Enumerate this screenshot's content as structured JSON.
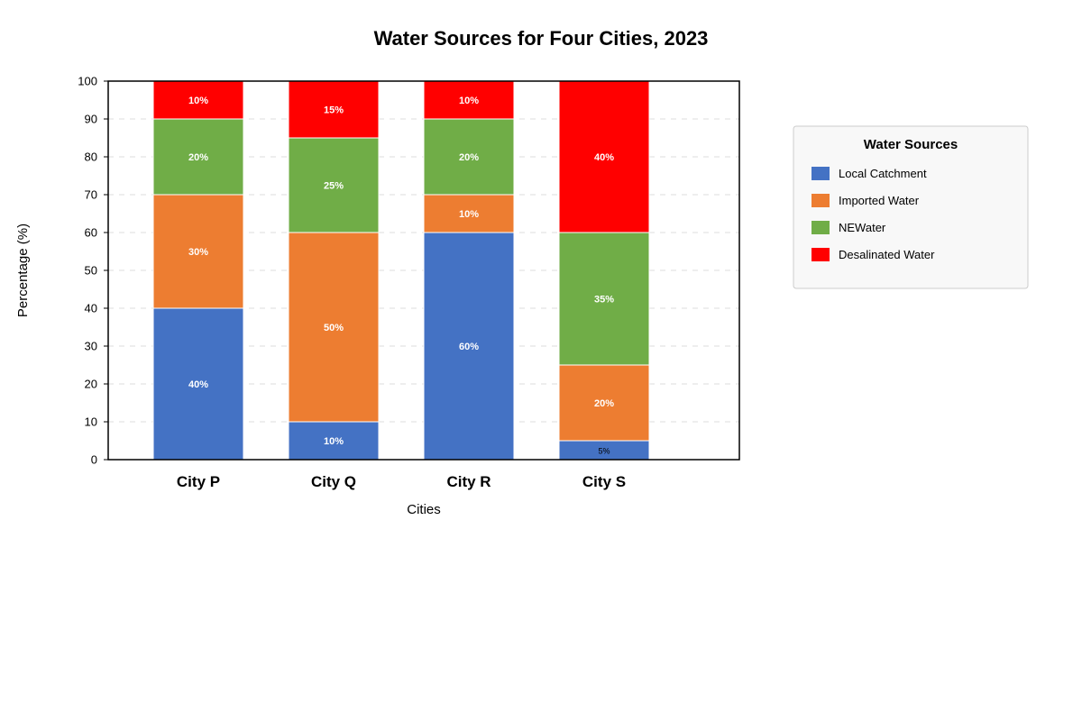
{
  "chart_data": {
    "type": "bar",
    "stacked": true,
    "title": "Water Sources for Four Cities, 2023",
    "xlabel": "Cities",
    "ylabel": "Percentage (%)",
    "ylim": [
      0,
      100
    ],
    "yticks": [
      0,
      10,
      20,
      30,
      40,
      50,
      60,
      70,
      80,
      90,
      100
    ],
    "grid": true,
    "legend_title": "Water Sources",
    "legend_position": "right",
    "categories": [
      "City P",
      "City Q",
      "City R",
      "City S"
    ],
    "series": [
      {
        "name": "Local Catchment",
        "color": "#4472C4",
        "values": [
          40,
          10,
          60,
          5
        ],
        "labels": [
          "40%",
          "10%",
          "60%",
          "5%"
        ]
      },
      {
        "name": "Imported Water",
        "color": "#ED7D31",
        "values": [
          30,
          50,
          10,
          20
        ],
        "labels": [
          "30%",
          "50%",
          "10%",
          "20%"
        ]
      },
      {
        "name": "NEWater",
        "color": "#70AD47",
        "values": [
          20,
          25,
          20,
          35
        ],
        "labels": [
          "20%",
          "25%",
          "20%",
          "35%"
        ]
      },
      {
        "name": "Desalinated Water",
        "color": "#FF0000",
        "values": [
          10,
          15,
          10,
          40
        ],
        "labels": [
          "10%",
          "15%",
          "10%",
          "40%"
        ]
      }
    ]
  }
}
